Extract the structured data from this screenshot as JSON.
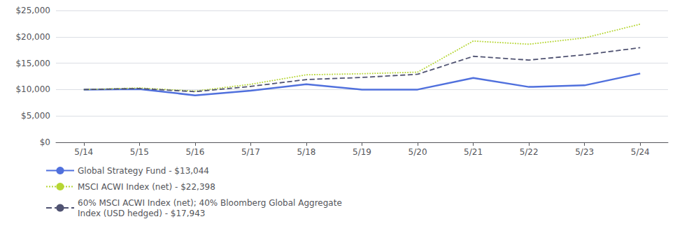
{
  "chart_data": {
    "type": "line",
    "categories": [
      "5/14",
      "5/15",
      "5/16",
      "5/17",
      "5/18",
      "5/19",
      "5/20",
      "5/21",
      "5/22",
      "5/23",
      "5/24"
    ],
    "series": [
      {
        "name": "Global Strategy Fund - $13,044",
        "line_style": "solid",
        "values": [
          10000,
          10100,
          8900,
          9800,
          11000,
          10000,
          10000,
          12200,
          10500,
          10800,
          13044
        ]
      },
      {
        "name": "MSCI ACWI Index (net) - $22,398",
        "line_style": "dotted",
        "values": [
          10000,
          10300,
          9700,
          11000,
          12800,
          13000,
          13300,
          19200,
          18600,
          19800,
          22398
        ]
      },
      {
        "name": "60% MSCI ACWI Index (net); 40% Bloomberg Global Aggregate\nIndex (USD hedged) - $17,943",
        "line_style": "dashed",
        "values": [
          10000,
          10200,
          9600,
          10600,
          11900,
          12300,
          12900,
          16300,
          15600,
          16600,
          17943
        ]
      }
    ],
    "ylim": [
      0,
      25000
    ],
    "yticks": [
      {
        "value": 0,
        "label": "$0"
      },
      {
        "value": 5000,
        "label": "$5,000"
      },
      {
        "value": 10000,
        "label": "$10,000"
      },
      {
        "value": 15000,
        "label": "$15,000"
      },
      {
        "value": 20000,
        "label": "$20,000"
      },
      {
        "value": 25000,
        "label": "$25,000"
      }
    ],
    "grid": true,
    "legend": "bottom"
  }
}
